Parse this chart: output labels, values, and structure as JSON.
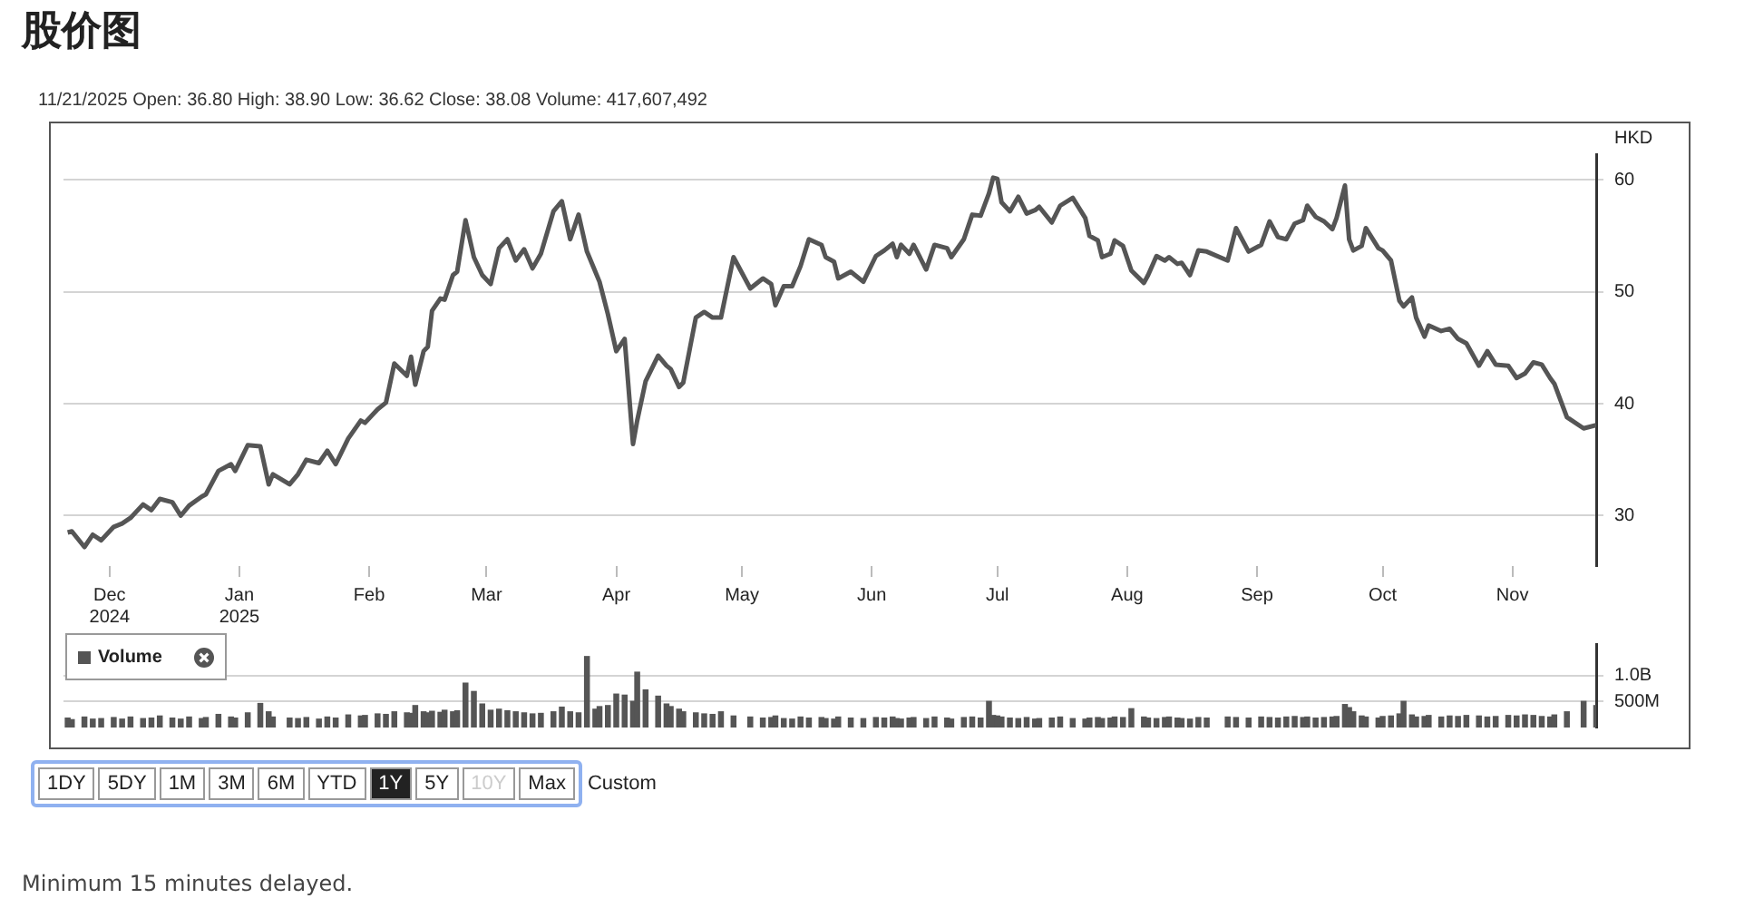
{
  "chart_data": [
    {
      "type": "line",
      "title": "股价图",
      "subtitle": "11/21/2025  Open: 36.80  High: 38.90  Low: 36.62  Close: 38.08  Volume: 417,607,492",
      "ylabel": "HKD",
      "color": "#555555",
      "grid": "y",
      "legend": false,
      "marker": "none",
      "line_style": "solid",
      "xlim": [
        "2024-11-20",
        "2025-11-21"
      ],
      "xticks": [
        {
          "value": "2024-12-01",
          "label": "Dec 2024"
        },
        {
          "value": "2025-01-01",
          "label": "Jan 2025"
        },
        {
          "value": "2025-02-01",
          "label": "Feb"
        },
        {
          "value": "2025-03-01",
          "label": "Mar"
        },
        {
          "value": "2025-04-01",
          "label": "Apr"
        },
        {
          "value": "2025-05-01",
          "label": "May"
        },
        {
          "value": "2025-06-01",
          "label": "Jun"
        },
        {
          "value": "2025-07-01",
          "label": "Jul"
        },
        {
          "value": "2025-08-01",
          "label": "Aug"
        },
        {
          "value": "2025-09-01",
          "label": "Sep"
        },
        {
          "value": "2025-10-01",
          "label": "Oct"
        },
        {
          "value": "2025-11-01",
          "label": "Nov"
        }
      ],
      "ylim": [
        25.5,
        62.3
      ],
      "yticks": [
        30,
        40,
        50,
        60
      ],
      "x": [
        "2024-11-21",
        "2024-11-22",
        "2024-11-25",
        "2024-11-27",
        "2024-11-29",
        "2024-12-02",
        "2024-12-04",
        "2024-12-06",
        "2024-12-09",
        "2024-12-11",
        "2024-12-13",
        "2024-12-16",
        "2024-12-18",
        "2024-12-20",
        "2024-12-23",
        "2024-12-24",
        "2024-12-27",
        "2024-12-30",
        "2024-12-31",
        "2025-01-03",
        "2025-01-06",
        "2025-01-08",
        "2025-01-09",
        "2025-01-13",
        "2025-01-15",
        "2025-01-17",
        "2025-01-20",
        "2025-01-22",
        "2025-01-24",
        "2025-01-27",
        "2025-01-30",
        "2025-01-31",
        "2025-02-03",
        "2025-02-05",
        "2025-02-07",
        "2025-02-10",
        "2025-02-11",
        "2025-02-12",
        "2025-02-14",
        "2025-02-15",
        "2025-02-16",
        "2025-02-18",
        "2025-02-19",
        "2025-02-21",
        "2025-02-22",
        "2025-02-24",
        "2025-02-26",
        "2025-02-28",
        "2025-03-02",
        "2025-03-04",
        "2025-03-06",
        "2025-03-08",
        "2025-03-10",
        "2025-03-12",
        "2025-03-14",
        "2025-03-17",
        "2025-03-19",
        "2025-03-21",
        "2025-03-23",
        "2025-03-25",
        "2025-03-27",
        "2025-03-28",
        "2025-03-30",
        "2025-04-01",
        "2025-04-03",
        "2025-04-05",
        "2025-04-06",
        "2025-04-08",
        "2025-04-11",
        "2025-04-13",
        "2025-04-14",
        "2025-04-16",
        "2025-04-17",
        "2025-04-20",
        "2025-04-22",
        "2025-04-24",
        "2025-04-26",
        "2025-04-29",
        "2025-05-03",
        "2025-05-06",
        "2025-05-08",
        "2025-05-09",
        "2025-05-11",
        "2025-05-13",
        "2025-05-15",
        "2025-05-17",
        "2025-05-20",
        "2025-05-21",
        "2025-05-23",
        "2025-05-24",
        "2025-05-27",
        "2025-05-30",
        "2025-06-02",
        "2025-06-04",
        "2025-06-06",
        "2025-06-07",
        "2025-06-08",
        "2025-06-10",
        "2025-06-11",
        "2025-06-14",
        "2025-06-16",
        "2025-06-19",
        "2025-06-20",
        "2025-06-23",
        "2025-06-25",
        "2025-06-27",
        "2025-06-29",
        "2025-06-30",
        "2025-07-01",
        "2025-07-02",
        "2025-07-04",
        "2025-07-06",
        "2025-07-08",
        "2025-07-10",
        "2025-07-11",
        "2025-07-14",
        "2025-07-16",
        "2025-07-19",
        "2025-07-22",
        "2025-07-23",
        "2025-07-25",
        "2025-07-26",
        "2025-07-28",
        "2025-07-29",
        "2025-07-31",
        "2025-08-02",
        "2025-08-05",
        "2025-08-06",
        "2025-08-08",
        "2025-08-10",
        "2025-08-11",
        "2025-08-13",
        "2025-08-14",
        "2025-08-16",
        "2025-08-18",
        "2025-08-20",
        "2025-08-25",
        "2025-08-27",
        "2025-08-30",
        "2025-09-02",
        "2025-09-04",
        "2025-09-06",
        "2025-09-08",
        "2025-09-10",
        "2025-09-12",
        "2025-09-13",
        "2025-09-15",
        "2025-09-17",
        "2025-09-19",
        "2025-09-20",
        "2025-09-22",
        "2025-09-23",
        "2025-09-24",
        "2025-09-26",
        "2025-09-27",
        "2025-09-30",
        "2025-10-01",
        "2025-10-03",
        "2025-10-05",
        "2025-10-06",
        "2025-10-08",
        "2025-10-09",
        "2025-10-11",
        "2025-10-12",
        "2025-10-15",
        "2025-10-17",
        "2025-10-19",
        "2025-10-21",
        "2025-10-24",
        "2025-10-26",
        "2025-10-28",
        "2025-10-31",
        "2025-11-02",
        "2025-11-04",
        "2025-11-06",
        "2025-11-08",
        "2025-11-10",
        "2025-11-11",
        "2025-11-14",
        "2025-11-18",
        "2025-11-21"
      ],
      "values": [
        28.5,
        28.6,
        27.2,
        28.3,
        27.8,
        29.0,
        29.3,
        29.8,
        31.0,
        30.5,
        31.5,
        31.2,
        30.0,
        30.9,
        31.7,
        31.9,
        34.0,
        34.6,
        34.0,
        36.3,
        36.2,
        32.8,
        33.7,
        32.8,
        33.7,
        35.0,
        34.7,
        35.8,
        34.6,
        36.9,
        38.5,
        38.3,
        39.5,
        40.1,
        43.6,
        42.5,
        44.2,
        41.7,
        44.7,
        45.1,
        48.3,
        49.4,
        49.3,
        51.5,
        51.8,
        56.4,
        53.1,
        51.5,
        50.7,
        53.9,
        54.7,
        52.8,
        53.8,
        52.1,
        53.4,
        57.2,
        58.1,
        54.7,
        56.9,
        53.6,
        51.8,
        50.9,
        48.0,
        44.7,
        45.8,
        36.4,
        38.5,
        42.0,
        44.3,
        43.4,
        43.1,
        41.5,
        41.9,
        47.7,
        48.2,
        47.7,
        47.7,
        53.1,
        50.3,
        51.2,
        50.7,
        48.8,
        50.5,
        50.5,
        52.3,
        54.7,
        54.2,
        53.1,
        52.7,
        51.2,
        51.8,
        50.9,
        53.2,
        53.7,
        54.3,
        53.1,
        54.2,
        53.4,
        54.2,
        52.0,
        54.2,
        53.9,
        53.1,
        54.7,
        56.9,
        56.8,
        58.8,
        60.2,
        60.1,
        58.0,
        57.2,
        58.5,
        57.0,
        57.3,
        57.6,
        56.2,
        57.7,
        58.4,
        56.6,
        55.0,
        54.6,
        53.1,
        53.4,
        54.6,
        54.1,
        51.9,
        50.8,
        51.5,
        53.2,
        52.8,
        53.1,
        52.5,
        52.6,
        51.5,
        53.7,
        53.6,
        52.8,
        55.7,
        53.6,
        54.2,
        56.3,
        54.9,
        54.7,
        56.1,
        56.4,
        57.7,
        56.7,
        56.3,
        55.6,
        56.6,
        59.5,
        54.7,
        53.7,
        54.1,
        55.7,
        53.9,
        53.7,
        52.8,
        49.2,
        48.7,
        49.5,
        47.7,
        46.0,
        47.0,
        46.5,
        46.7,
        45.8,
        45.4,
        43.4,
        44.7,
        43.5,
        43.4,
        42.3,
        42.7,
        43.7,
        43.5,
        42.3,
        41.8,
        38.8,
        37.8,
        38.1
      ]
    },
    {
      "type": "bar",
      "legend": "top left",
      "grid": "y",
      "tick_labels": "y",
      "annotations": [
        "Minimum 15 minutes delayed."
      ],
      "xlim": [
        "2024-11-20",
        "2025-11-21"
      ],
      "ylim": [
        0,
        1600000000.0
      ],
      "yticks": [
        {
          "value": 500000000.0,
          "label": "500M"
        },
        {
          "value": 1000000000.0,
          "label": "1.0B"
        }
      ],
      "x": [
        "2024-11-21",
        "2024-11-22",
        "2024-11-25",
        "2024-11-27",
        "2024-11-29",
        "2024-12-02",
        "2024-12-04",
        "2024-12-06",
        "2024-12-09",
        "2024-12-11",
        "2024-12-13",
        "2024-12-16",
        "2024-12-18",
        "2024-12-20",
        "2024-12-23",
        "2024-12-24",
        "2024-12-27",
        "2024-12-30",
        "2024-12-31",
        "2025-01-03",
        "2025-01-06",
        "2025-01-08",
        "2025-01-09",
        "2025-01-13",
        "2025-01-15",
        "2025-01-17",
        "2025-01-20",
        "2025-01-22",
        "2025-01-24",
        "2025-01-27",
        "2025-01-30",
        "2025-01-31",
        "2025-02-03",
        "2025-02-05",
        "2025-02-07",
        "2025-02-10",
        "2025-02-11",
        "2025-02-12",
        "2025-02-14",
        "2025-02-15",
        "2025-02-16",
        "2025-02-18",
        "2025-02-19",
        "2025-02-21",
        "2025-02-22",
        "2025-02-24",
        "2025-02-26",
        "2025-02-28",
        "2025-03-02",
        "2025-03-04",
        "2025-03-06",
        "2025-03-08",
        "2025-03-10",
        "2025-03-12",
        "2025-03-14",
        "2025-03-17",
        "2025-03-19",
        "2025-03-21",
        "2025-03-23",
        "2025-03-25",
        "2025-03-27",
        "2025-03-28",
        "2025-03-30",
        "2025-04-01",
        "2025-04-03",
        "2025-04-05",
        "2025-04-06",
        "2025-04-08",
        "2025-04-11",
        "2025-04-13",
        "2025-04-14",
        "2025-04-16",
        "2025-04-17",
        "2025-04-20",
        "2025-04-22",
        "2025-04-24",
        "2025-04-26",
        "2025-04-29",
        "2025-05-03",
        "2025-05-06",
        "2025-05-08",
        "2025-05-09",
        "2025-05-11",
        "2025-05-13",
        "2025-05-15",
        "2025-05-17",
        "2025-05-20",
        "2025-05-21",
        "2025-05-23",
        "2025-05-24",
        "2025-05-27",
        "2025-05-30",
        "2025-06-02",
        "2025-06-04",
        "2025-06-06",
        "2025-06-07",
        "2025-06-08",
        "2025-06-10",
        "2025-06-11",
        "2025-06-14",
        "2025-06-16",
        "2025-06-19",
        "2025-06-20",
        "2025-06-23",
        "2025-06-25",
        "2025-06-27",
        "2025-06-29",
        "2025-06-30",
        "2025-07-01",
        "2025-07-02",
        "2025-07-04",
        "2025-07-06",
        "2025-07-08",
        "2025-07-10",
        "2025-07-11",
        "2025-07-14",
        "2025-07-16",
        "2025-07-19",
        "2025-07-22",
        "2025-07-23",
        "2025-07-25",
        "2025-07-26",
        "2025-07-28",
        "2025-07-29",
        "2025-07-31",
        "2025-08-02",
        "2025-08-05",
        "2025-08-06",
        "2025-08-08",
        "2025-08-10",
        "2025-08-11",
        "2025-08-13",
        "2025-08-14",
        "2025-08-16",
        "2025-08-18",
        "2025-08-20",
        "2025-08-25",
        "2025-08-27",
        "2025-08-30",
        "2025-09-02",
        "2025-09-04",
        "2025-09-06",
        "2025-09-08",
        "2025-09-10",
        "2025-09-12",
        "2025-09-13",
        "2025-09-15",
        "2025-09-17",
        "2025-09-19",
        "2025-09-20",
        "2025-09-22",
        "2025-09-23",
        "2025-09-24",
        "2025-09-26",
        "2025-09-27",
        "2025-09-30",
        "2025-10-01",
        "2025-10-03",
        "2025-10-05",
        "2025-10-06",
        "2025-10-08",
        "2025-10-09",
        "2025-10-11",
        "2025-10-12",
        "2025-10-15",
        "2025-10-17",
        "2025-10-19",
        "2025-10-21",
        "2025-10-24",
        "2025-10-26",
        "2025-10-28",
        "2025-10-31",
        "2025-11-02",
        "2025-11-04",
        "2025-11-06",
        "2025-11-08",
        "2025-11-10",
        "2025-11-11",
        "2025-11-14",
        "2025-11-18",
        "2025-11-21"
      ],
      "series": [
        {
          "name": "Volume",
          "color": "#555555",
          "values": [
            180000000.0,
            150000000.0,
            200000000.0,
            160000000.0,
            170000000.0,
            190000000.0,
            160000000.0,
            200000000.0,
            170000000.0,
            180000000.0,
            220000000.0,
            180000000.0,
            160000000.0,
            200000000.0,
            170000000.0,
            190000000.0,
            250000000.0,
            200000000.0,
            180000000.0,
            280000000.0,
            460000000.0,
            300000000.0,
            200000000.0,
            180000000.0,
            170000000.0,
            190000000.0,
            160000000.0,
            200000000.0,
            180000000.0,
            240000000.0,
            220000000.0,
            230000000.0,
            260000000.0,
            250000000.0,
            300000000.0,
            280000000.0,
            270000000.0,
            420000000.0,
            300000000.0,
            280000000.0,
            310000000.0,
            290000000.0,
            330000000.0,
            300000000.0,
            320000000.0,
            850000000.0,
            690000000.0,
            450000000.0,
            330000000.0,
            350000000.0,
            320000000.0,
            300000000.0,
            280000000.0,
            260000000.0,
            270000000.0,
            300000000.0,
            390000000.0,
            300000000.0,
            280000000.0,
            1360000000.0,
            350000000.0,
            400000000.0,
            420000000.0,
            640000000.0,
            620000000.0,
            500000000.0,
            1060000000.0,
            720000000.0,
            600000000.0,
            450000000.0,
            400000000.0,
            350000000.0,
            300000000.0,
            280000000.0,
            260000000.0,
            250000000.0,
            300000000.0,
            220000000.0,
            200000000.0,
            180000000.0,
            190000000.0,
            220000000.0,
            170000000.0,
            160000000.0,
            200000000.0,
            180000000.0,
            190000000.0,
            170000000.0,
            160000000.0,
            200000000.0,
            180000000.0,
            170000000.0,
            190000000.0,
            180000000.0,
            200000000.0,
            170000000.0,
            160000000.0,
            180000000.0,
            190000000.0,
            170000000.0,
            200000000.0,
            180000000.0,
            160000000.0,
            190000000.0,
            200000000.0,
            180000000.0,
            500000000.0,
            230000000.0,
            220000000.0,
            200000000.0,
            180000000.0,
            170000000.0,
            190000000.0,
            160000000.0,
            170000000.0,
            180000000.0,
            200000000.0,
            170000000.0,
            160000000.0,
            180000000.0,
            190000000.0,
            170000000.0,
            180000000.0,
            200000000.0,
            190000000.0,
            360000000.0,
            200000000.0,
            180000000.0,
            170000000.0,
            190000000.0,
            200000000.0,
            180000000.0,
            170000000.0,
            160000000.0,
            190000000.0,
            180000000.0,
            200000000.0,
            190000000.0,
            180000000.0,
            200000000.0,
            190000000.0,
            180000000.0,
            200000000.0,
            210000000.0,
            190000000.0,
            200000000.0,
            180000000.0,
            190000000.0,
            200000000.0,
            210000000.0,
            440000000.0,
            380000000.0,
            300000000.0,
            220000000.0,
            200000000.0,
            180000000.0,
            210000000.0,
            220000000.0,
            260000000.0,
            500000000.0,
            240000000.0,
            200000000.0,
            210000000.0,
            230000000.0,
            200000000.0,
            220000000.0,
            210000000.0,
            230000000.0,
            220000000.0,
            200000000.0,
            210000000.0,
            230000000.0,
            220000000.0,
            240000000.0,
            230000000.0,
            210000000.0,
            200000000.0,
            240000000.0,
            300000000.0,
            500000000.0,
            420000000.0
          ]
        }
      ]
    },
    {
      "type": "other",
      "annotations": [
        "1DY",
        "5DY",
        "1M",
        "3M",
        "6M",
        "YTD",
        "1Y",
        "5Y",
        "10Y",
        "Max",
        "Custom"
      ]
    }
  ]
}
